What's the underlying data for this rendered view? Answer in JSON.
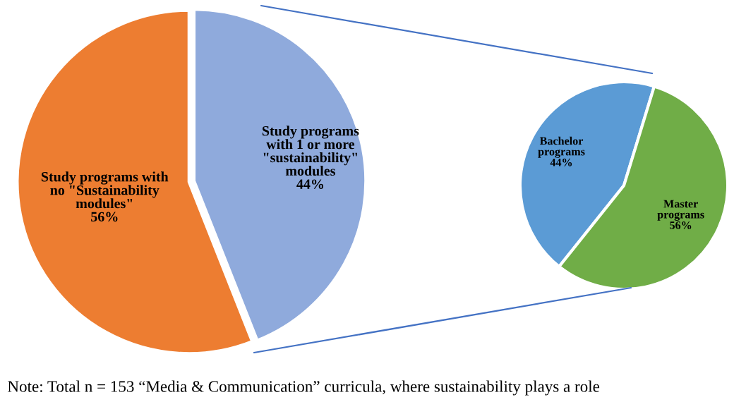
{
  "chart_data": [
    {
      "type": "pie",
      "categories": [
        "Study programs with\nno \"Sustainability\nmodules\"",
        "Study programs\nwith 1 or more\n\"sustainability\"\nmodules"
      ],
      "values": [
        56,
        44
      ],
      "colors": [
        "#ed7d31",
        "#8faadc"
      ],
      "value_labels": [
        "56%",
        "44%"
      ],
      "annotations": [
        "Note: Total n = 153 “Media & Communication” curricula, where sustainability plays a role"
      ]
    },
    {
      "type": "pie",
      "categories": [
        "Bachelor\nprograms",
        "Master\nprograms"
      ],
      "values": [
        44,
        56
      ],
      "colors": [
        "#5b9bd5",
        "#70ad47"
      ],
      "value_labels": [
        "44%",
        "56%"
      ]
    }
  ]
}
